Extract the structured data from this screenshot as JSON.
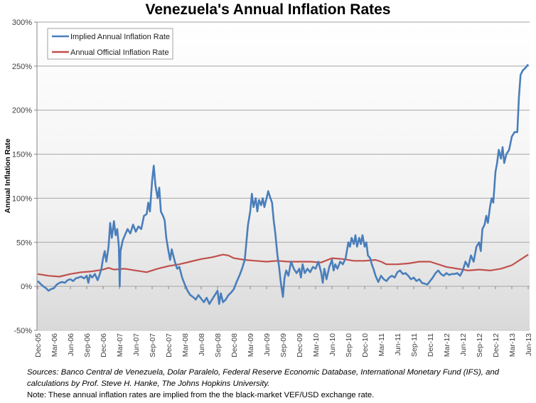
{
  "chart_data": {
    "type": "line",
    "title": "Venezuela's Annual Inflation Rates",
    "xlabel": "",
    "ylabel": "Annual Inflation Rate",
    "ylim": [
      -50,
      300
    ],
    "yticks": [
      -50,
      0,
      50,
      100,
      150,
      200,
      250,
      300
    ],
    "ytick_labels": [
      "-50%",
      "0%",
      "50%",
      "100%",
      "150%",
      "200%",
      "250%",
      "300%"
    ],
    "x_range_months": [
      0,
      90
    ],
    "x_ticks": [
      {
        "m": 0,
        "label": "Dec-05"
      },
      {
        "m": 3,
        "label": "Mar-06"
      },
      {
        "m": 6,
        "label": "Jun-06"
      },
      {
        "m": 9,
        "label": "Sep-06"
      },
      {
        "m": 12,
        "label": "Dec-06"
      },
      {
        "m": 15,
        "label": "Mar-07"
      },
      {
        "m": 18,
        "label": "Jun-07"
      },
      {
        "m": 21,
        "label": "Sep-07"
      },
      {
        "m": 24,
        "label": "Dec-07"
      },
      {
        "m": 27,
        "label": "Mar-08"
      },
      {
        "m": 30,
        "label": "Jun-08"
      },
      {
        "m": 33,
        "label": "Sep-08"
      },
      {
        "m": 36,
        "label": "Dec-08"
      },
      {
        "m": 39,
        "label": "Mar-09"
      },
      {
        "m": 42,
        "label": "Jun-09"
      },
      {
        "m": 45,
        "label": "Sep-09"
      },
      {
        "m": 48,
        "label": "Dec-09"
      },
      {
        "m": 51,
        "label": "Mar-10"
      },
      {
        "m": 54,
        "label": "Jun-10"
      },
      {
        "m": 57,
        "label": "Sep-10"
      },
      {
        "m": 60,
        "label": "Dec-10"
      },
      {
        "m": 63,
        "label": "Mar-11"
      },
      {
        "m": 66,
        "label": "Jun-11"
      },
      {
        "m": 69,
        "label": "Sep-11"
      },
      {
        "m": 72,
        "label": "Dec-11"
      },
      {
        "m": 75,
        "label": "Mar-12"
      },
      {
        "m": 78,
        "label": "Jun-12"
      },
      {
        "m": 81,
        "label": "Sep-12"
      },
      {
        "m": 84,
        "label": "Dec-12"
      },
      {
        "m": 87,
        "label": "Mar-13"
      },
      {
        "m": 90,
        "label": "Jun-13"
      }
    ],
    "grid": true,
    "legend_position": "top-left",
    "series": [
      {
        "name": "Implied Annual Inflation Rate",
        "color": "#4a7ebb",
        "points": [
          [
            0,
            6
          ],
          [
            0.5,
            3
          ],
          [
            1,
            0
          ],
          [
            1.5,
            -2
          ],
          [
            2,
            -5
          ],
          [
            2.5,
            -3
          ],
          [
            3,
            -2
          ],
          [
            3.5,
            2
          ],
          [
            4,
            4
          ],
          [
            4.5,
            5
          ],
          [
            5,
            4
          ],
          [
            5.5,
            7
          ],
          [
            6,
            8
          ],
          [
            6.5,
            6
          ],
          [
            7,
            9
          ],
          [
            7.5,
            10
          ],
          [
            8,
            11
          ],
          [
            8.5,
            9
          ],
          [
            9,
            12
          ],
          [
            9.3,
            4
          ],
          [
            9.6,
            13
          ],
          [
            10,
            10
          ],
          [
            10.5,
            14
          ],
          [
            11,
            7
          ],
          [
            11.3,
            12
          ],
          [
            11.7,
            20
          ],
          [
            12,
            32
          ],
          [
            12.3,
            40
          ],
          [
            12.6,
            28
          ],
          [
            13,
            45
          ],
          [
            13.3,
            72
          ],
          [
            13.6,
            55
          ],
          [
            14,
            74
          ],
          [
            14.3,
            58
          ],
          [
            14.6,
            65
          ],
          [
            14.9,
            45
          ],
          [
            15.05,
            0
          ],
          [
            15.2,
            40
          ],
          [
            15.6,
            52
          ],
          [
            16,
            58
          ],
          [
            16.5,
            65
          ],
          [
            17,
            60
          ],
          [
            17.5,
            70
          ],
          [
            18,
            62
          ],
          [
            18.5,
            68
          ],
          [
            19,
            65
          ],
          [
            19.5,
            80
          ],
          [
            20,
            82
          ],
          [
            20.3,
            95
          ],
          [
            20.6,
            85
          ],
          [
            21,
            120
          ],
          [
            21.3,
            137
          ],
          [
            21.6,
            115
          ],
          [
            22,
            100
          ],
          [
            22.3,
            112
          ],
          [
            22.6,
            85
          ],
          [
            23,
            80
          ],
          [
            23.3,
            75
          ],
          [
            23.6,
            55
          ],
          [
            24,
            40
          ],
          [
            24.3,
            30
          ],
          [
            24.6,
            42
          ],
          [
            25,
            32
          ],
          [
            25.3,
            25
          ],
          [
            25.6,
            20
          ],
          [
            26,
            22
          ],
          [
            26.5,
            10
          ],
          [
            27,
            2
          ],
          [
            27.5,
            -5
          ],
          [
            28,
            -10
          ],
          [
            28.5,
            -12
          ],
          [
            29,
            -15
          ],
          [
            29.5,
            -10
          ],
          [
            30,
            -14
          ],
          [
            30.5,
            -18
          ],
          [
            31,
            -13
          ],
          [
            31.5,
            -20
          ],
          [
            32,
            -15
          ],
          [
            32.5,
            -10
          ],
          [
            33,
            -5
          ],
          [
            33.3,
            -20
          ],
          [
            33.6,
            -8
          ],
          [
            34,
            -18
          ],
          [
            34.5,
            -15
          ],
          [
            35,
            -10
          ],
          [
            35.5,
            -7
          ],
          [
            36,
            -3
          ],
          [
            36.5,
            5
          ],
          [
            37,
            12
          ],
          [
            37.5,
            20
          ],
          [
            38,
            30
          ],
          [
            38.3,
            50
          ],
          [
            38.6,
            70
          ],
          [
            39,
            85
          ],
          [
            39.3,
            105
          ],
          [
            39.6,
            90
          ],
          [
            40,
            100
          ],
          [
            40.3,
            85
          ],
          [
            40.6,
            98
          ],
          [
            41,
            92
          ],
          [
            41.3,
            100
          ],
          [
            41.6,
            90
          ],
          [
            42,
            100
          ],
          [
            42.3,
            108
          ],
          [
            42.6,
            102
          ],
          [
            43,
            95
          ],
          [
            43.3,
            75
          ],
          [
            43.6,
            60
          ],
          [
            44,
            35
          ],
          [
            44.3,
            22
          ],
          [
            44.6,
            5
          ],
          [
            45,
            -12
          ],
          [
            45.3,
            10
          ],
          [
            45.6,
            18
          ],
          [
            46,
            12
          ],
          [
            46.5,
            28
          ],
          [
            47,
            20
          ],
          [
            47.5,
            15
          ],
          [
            48,
            20
          ],
          [
            48.3,
            10
          ],
          [
            48.6,
            25
          ],
          [
            49,
            15
          ],
          [
            49.5,
            20
          ],
          [
            50,
            16
          ],
          [
            50.5,
            22
          ],
          [
            51,
            20
          ],
          [
            51.5,
            28
          ],
          [
            52,
            16
          ],
          [
            52.3,
            4
          ],
          [
            52.6,
            20
          ],
          [
            53,
            8
          ],
          [
            53.5,
            22
          ],
          [
            54,
            30
          ],
          [
            54.3,
            18
          ],
          [
            54.6,
            25
          ],
          [
            55,
            20
          ],
          [
            55.5,
            28
          ],
          [
            56,
            25
          ],
          [
            56.5,
            32
          ],
          [
            57,
            50
          ],
          [
            57.3,
            45
          ],
          [
            57.6,
            55
          ],
          [
            58,
            48
          ],
          [
            58.3,
            58
          ],
          [
            58.6,
            45
          ],
          [
            59,
            55
          ],
          [
            59.3,
            48
          ],
          [
            59.6,
            58
          ],
          [
            60,
            45
          ],
          [
            60.3,
            50
          ],
          [
            60.6,
            35
          ],
          [
            61,
            32
          ],
          [
            61.3,
            25
          ],
          [
            61.6,
            20
          ],
          [
            62,
            12
          ],
          [
            62.5,
            5
          ],
          [
            63,
            12
          ],
          [
            63.5,
            8
          ],
          [
            64,
            6
          ],
          [
            64.5,
            10
          ],
          [
            65,
            12
          ],
          [
            65.5,
            10
          ],
          [
            66,
            16
          ],
          [
            66.5,
            18
          ],
          [
            67,
            14
          ],
          [
            67.5,
            15
          ],
          [
            68,
            12
          ],
          [
            68.5,
            8
          ],
          [
            69,
            10
          ],
          [
            69.5,
            6
          ],
          [
            70,
            8
          ],
          [
            70.5,
            4
          ],
          [
            71,
            3
          ],
          [
            71.5,
            2
          ],
          [
            72,
            6
          ],
          [
            72.5,
            10
          ],
          [
            73,
            15
          ],
          [
            73.5,
            18
          ],
          [
            74,
            14
          ],
          [
            74.5,
            12
          ],
          [
            75,
            15
          ],
          [
            75.5,
            13
          ],
          [
            76,
            14
          ],
          [
            76.5,
            14
          ],
          [
            77,
            15
          ],
          [
            77.5,
            12
          ],
          [
            78,
            18
          ],
          [
            78.5,
            28
          ],
          [
            79,
            22
          ],
          [
            79.5,
            35
          ],
          [
            80,
            28
          ],
          [
            80.5,
            45
          ],
          [
            81,
            50
          ],
          [
            81.3,
            40
          ],
          [
            81.6,
            65
          ],
          [
            82,
            70
          ],
          [
            82.3,
            80
          ],
          [
            82.6,
            72
          ],
          [
            83,
            90
          ],
          [
            83.3,
            100
          ],
          [
            83.6,
            95
          ],
          [
            84,
            130
          ],
          [
            84.3,
            140
          ],
          [
            84.6,
            155
          ],
          [
            85,
            145
          ],
          [
            85.3,
            158
          ],
          [
            85.6,
            140
          ],
          [
            86,
            150
          ],
          [
            86.5,
            155
          ],
          [
            87,
            170
          ],
          [
            87.5,
            175
          ],
          [
            88,
            175
          ],
          [
            88.3,
            215
          ],
          [
            88.6,
            240
          ],
          [
            89,
            245
          ],
          [
            89.5,
            248
          ],
          [
            90,
            252
          ]
        ]
      },
      {
        "name": "Annual Official Inflation Rate",
        "color": "#c0504d",
        "points": [
          [
            0,
            14
          ],
          [
            2,
            12
          ],
          [
            4,
            11
          ],
          [
            6,
            14
          ],
          [
            8,
            16
          ],
          [
            10,
            17
          ],
          [
            12,
            19
          ],
          [
            13,
            21
          ],
          [
            14,
            19
          ],
          [
            16,
            20
          ],
          [
            18,
            18
          ],
          [
            20,
            16
          ],
          [
            22,
            20
          ],
          [
            24,
            23
          ],
          [
            26,
            25
          ],
          [
            28,
            28
          ],
          [
            30,
            31
          ],
          [
            32,
            33
          ],
          [
            34,
            36
          ],
          [
            35,
            35
          ],
          [
            36,
            32
          ],
          [
            38,
            30
          ],
          [
            40,
            29
          ],
          [
            42,
            28
          ],
          [
            44,
            29
          ],
          [
            46,
            28
          ],
          [
            48,
            28
          ],
          [
            50,
            28
          ],
          [
            52,
            27
          ],
          [
            54,
            32
          ],
          [
            56,
            31
          ],
          [
            58,
            29
          ],
          [
            60,
            29
          ],
          [
            62,
            30
          ],
          [
            63,
            28
          ],
          [
            64,
            25
          ],
          [
            66,
            25
          ],
          [
            68,
            26
          ],
          [
            70,
            28
          ],
          [
            72,
            28
          ],
          [
            73,
            26
          ],
          [
            75,
            22
          ],
          [
            77,
            20
          ],
          [
            78,
            19
          ],
          [
            79,
            18
          ],
          [
            81,
            19
          ],
          [
            83,
            18
          ],
          [
            85,
            20
          ],
          [
            87,
            24
          ],
          [
            88,
            28
          ],
          [
            89,
            32
          ],
          [
            90,
            36
          ]
        ]
      }
    ]
  },
  "footer": {
    "sources": "Sources: Banco Central de Venezuela, Dolar Paralelo, Federal Reserve Economic Database, International Monetary Fund (IFS), and calculations by Prof. Steve H. Hanke, The Johns Hopkins University.",
    "note": "Note: These annual inflation rates are implied from the the black-market VEF/USD exchange rate."
  }
}
